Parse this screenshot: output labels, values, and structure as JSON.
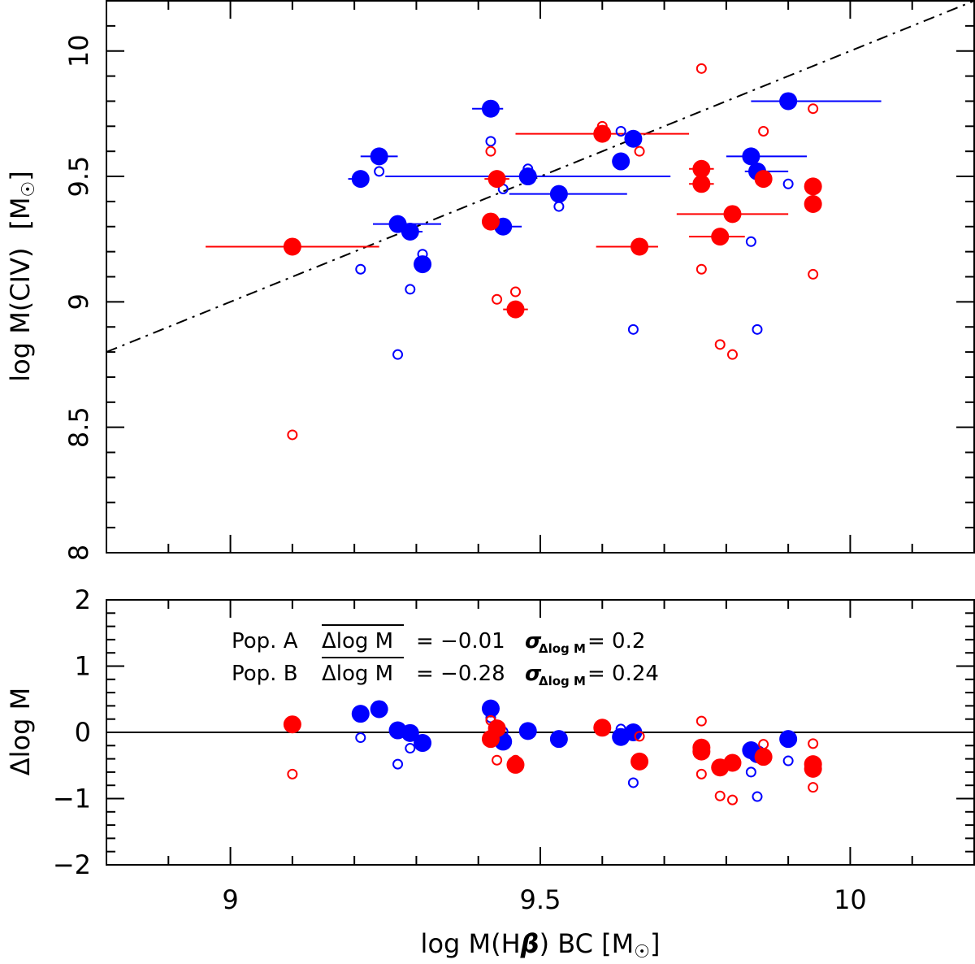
{
  "chart_data": [
    {
      "type": "scatter",
      "panel": "top",
      "ylabel_main": "log M(CIV)",
      "ylabel_unit": "[M",
      "ylabel_unit_close": "]",
      "xlim": [
        8.8,
        10.2
      ],
      "ylim": [
        8.0,
        10.2
      ],
      "xticks": [
        9,
        9.5,
        10
      ],
      "xtick_labels": [
        "",
        "",
        ""
      ],
      "yticks": [
        8,
        8.5,
        9,
        9.5,
        10
      ],
      "ytick_labels": [
        "8",
        "8.5",
        "9",
        "9.5",
        "10"
      ],
      "reference_line": {
        "style": "dash-dot",
        "x": [
          8.8,
          10.2
        ],
        "y": [
          8.8,
          10.2
        ]
      },
      "series": [
        {
          "color": "#0000ff",
          "marker": "filled-circle",
          "points": [
            {
              "x": 9.21,
              "y": 9.49,
              "xerr": [
                0.02,
                0.01
              ]
            },
            {
              "x": 9.24,
              "y": 9.58,
              "xerr": [
                0.03,
                0.03
              ]
            },
            {
              "x": 9.27,
              "y": 9.31,
              "xerr": [
                0.04,
                0.07
              ]
            },
            {
              "x": 9.29,
              "y": 9.28,
              "xerr": [
                0.02,
                0.02
              ]
            },
            {
              "x": 9.31,
              "y": 9.15,
              "xerr": [
                0.0,
                0.0
              ]
            },
            {
              "x": 9.42,
              "y": 9.77,
              "xerr": [
                0.03,
                0.02
              ]
            },
            {
              "x": 9.44,
              "y": 9.3,
              "xerr": [
                0.02,
                0.03
              ]
            },
            {
              "x": 9.48,
              "y": 9.5,
              "xerr": [
                0.23,
                0.23
              ]
            },
            {
              "x": 9.53,
              "y": 9.43,
              "xerr": [
                0.08,
                0.11
              ]
            },
            {
              "x": 9.63,
              "y": 9.56,
              "xerr": [
                0.01,
                0.01
              ]
            },
            {
              "x": 9.65,
              "y": 9.65,
              "xerr": [
                0.0,
                0.0
              ]
            },
            {
              "x": 9.84,
              "y": 9.58,
              "xerr": [
                0.04,
                0.09
              ]
            },
            {
              "x": 9.85,
              "y": 9.52,
              "xerr": [
                0.02,
                0.05
              ]
            },
            {
              "x": 9.9,
              "y": 9.8,
              "xerr": [
                0.06,
                0.15
              ]
            }
          ]
        },
        {
          "color": "#0000ff",
          "marker": "open-circle",
          "points": [
            {
              "x": 9.21,
              "y": 9.13
            },
            {
              "x": 9.24,
              "y": 9.52
            },
            {
              "x": 9.27,
              "y": 8.79
            },
            {
              "x": 9.29,
              "y": 9.05
            },
            {
              "x": 9.31,
              "y": 9.19
            },
            {
              "x": 9.42,
              "y": 9.64
            },
            {
              "x": 9.44,
              "y": 9.45
            },
            {
              "x": 9.48,
              "y": 9.53
            },
            {
              "x": 9.53,
              "y": 9.38
            },
            {
              "x": 9.63,
              "y": 9.68
            },
            {
              "x": 9.65,
              "y": 8.89
            },
            {
              "x": 9.84,
              "y": 9.24
            },
            {
              "x": 9.85,
              "y": 8.89
            },
            {
              "x": 9.9,
              "y": 9.47
            }
          ]
        },
        {
          "color": "#ff0000",
          "marker": "filled-circle",
          "points": [
            {
              "x": 9.1,
              "y": 9.22,
              "xerr": [
                0.14,
                0.14
              ]
            },
            {
              "x": 9.42,
              "y": 9.32,
              "xerr": [
                0.01,
                0.01
              ]
            },
            {
              "x": 9.43,
              "y": 9.49,
              "xerr": [
                0.02,
                0.02
              ]
            },
            {
              "x": 9.46,
              "y": 8.97,
              "xerr": [
                0.02,
                0.02
              ]
            },
            {
              "x": 9.6,
              "y": 9.67,
              "xerr": [
                0.14,
                0.14
              ]
            },
            {
              "x": 9.66,
              "y": 9.22,
              "xerr": [
                0.07,
                0.03
              ]
            },
            {
              "x": 9.76,
              "y": 9.53,
              "xerr": [
                0.02,
                0.02
              ]
            },
            {
              "x": 9.76,
              "y": 9.47,
              "xerr": [
                0.02,
                0.02
              ]
            },
            {
              "x": 9.79,
              "y": 9.26,
              "xerr": [
                0.05,
                0.04
              ]
            },
            {
              "x": 9.81,
              "y": 9.35,
              "xerr": [
                0.09,
                0.09
              ]
            },
            {
              "x": 9.86,
              "y": 9.49,
              "xerr": [
                0.0,
                0.0
              ]
            },
            {
              "x": 9.94,
              "y": 9.46,
              "xerr": [
                0.01,
                0.01
              ]
            },
            {
              "x": 9.94,
              "y": 9.39,
              "xerr": [
                0.01,
                0.01
              ]
            }
          ]
        },
        {
          "color": "#ff0000",
          "marker": "open-circle",
          "points": [
            {
              "x": 9.1,
              "y": 8.47
            },
            {
              "x": 9.42,
              "y": 9.6
            },
            {
              "x": 9.43,
              "y": 9.01
            },
            {
              "x": 9.46,
              "y": 9.04
            },
            {
              "x": 9.6,
              "y": 9.7
            },
            {
              "x": 9.66,
              "y": 9.6
            },
            {
              "x": 9.76,
              "y": 9.93
            },
            {
              "x": 9.76,
              "y": 9.13
            },
            {
              "x": 9.79,
              "y": 8.83
            },
            {
              "x": 9.81,
              "y": 8.79
            },
            {
              "x": 9.86,
              "y": 9.68
            },
            {
              "x": 9.94,
              "y": 9.77
            },
            {
              "x": 9.94,
              "y": 9.11
            }
          ]
        }
      ]
    },
    {
      "type": "scatter",
      "panel": "bottom",
      "xlabel_main": "log M(H",
      "xlabel_beta": "β",
      "xlabel_rest": ") BC  [M",
      "xlabel_close": "]",
      "ylabel_main": "Δlog M",
      "xlim": [
        8.8,
        10.2
      ],
      "ylim": [
        -2,
        2
      ],
      "xticks": [
        9,
        9.5,
        10
      ],
      "xtick_labels": [
        "9",
        "9.5",
        "10"
      ],
      "yticks": [
        -2,
        -1,
        0,
        1,
        2
      ],
      "ytick_labels": [
        "−2",
        "−1",
        "0",
        "1",
        "2"
      ],
      "reference_line": {
        "style": "solid",
        "y": 0
      },
      "annotations": [
        {
          "pop": "Pop. A",
          "mean_label": "Δlog M",
          "mean_value": "=  −0.01",
          "sigma_symbol": "σ",
          "sigma_sub": "Δlog M",
          "sigma_value": "=  0.2"
        },
        {
          "pop": "Pop. B",
          "mean_label": "Δlog M",
          "mean_value": "=  −0.28",
          "sigma_symbol": "σ",
          "sigma_sub": "Δlog M",
          "sigma_value": "=  0.24"
        }
      ],
      "series": [
        {
          "color": "#0000ff",
          "marker": "filled-circle",
          "points": [
            {
              "x": 9.21,
              "y": 0.28
            },
            {
              "x": 9.24,
              "y": 0.35
            },
            {
              "x": 9.27,
              "y": 0.03
            },
            {
              "x": 9.29,
              "y": -0.01
            },
            {
              "x": 9.31,
              "y": -0.16
            },
            {
              "x": 9.42,
              "y": 0.36
            },
            {
              "x": 9.44,
              "y": -0.14
            },
            {
              "x": 9.48,
              "y": 0.02
            },
            {
              "x": 9.53,
              "y": -0.1
            },
            {
              "x": 9.63,
              "y": -0.07
            },
            {
              "x": 9.65,
              "y": 0.0
            },
            {
              "x": 9.84,
              "y": -0.27
            },
            {
              "x": 9.85,
              "y": -0.33
            },
            {
              "x": 9.9,
              "y": -0.1
            }
          ]
        },
        {
          "color": "#0000ff",
          "marker": "open-circle",
          "points": [
            {
              "x": 9.21,
              "y": -0.08
            },
            {
              "x": 9.27,
              "y": -0.48
            },
            {
              "x": 9.29,
              "y": -0.24
            },
            {
              "x": 9.31,
              "y": -0.12
            },
            {
              "x": 9.42,
              "y": 0.22
            },
            {
              "x": 9.44,
              "y": 0.01
            },
            {
              "x": 9.63,
              "y": 0.05
            },
            {
              "x": 9.65,
              "y": -0.76
            },
            {
              "x": 9.84,
              "y": -0.6
            },
            {
              "x": 9.85,
              "y": -0.97
            },
            {
              "x": 9.9,
              "y": -0.43
            }
          ]
        },
        {
          "color": "#ff0000",
          "marker": "filled-circle",
          "points": [
            {
              "x": 9.1,
              "y": 0.12
            },
            {
              "x": 9.42,
              "y": -0.1
            },
            {
              "x": 9.43,
              "y": 0.06
            },
            {
              "x": 9.46,
              "y": -0.49
            },
            {
              "x": 9.6,
              "y": 0.07
            },
            {
              "x": 9.66,
              "y": -0.44
            },
            {
              "x": 9.76,
              "y": -0.23
            },
            {
              "x": 9.76,
              "y": -0.29
            },
            {
              "x": 9.79,
              "y": -0.53
            },
            {
              "x": 9.81,
              "y": -0.46
            },
            {
              "x": 9.86,
              "y": -0.37
            },
            {
              "x": 9.94,
              "y": -0.48
            },
            {
              "x": 9.94,
              "y": -0.55
            }
          ]
        },
        {
          "color": "#ff0000",
          "marker": "open-circle",
          "points": [
            {
              "x": 9.1,
              "y": -0.63
            },
            {
              "x": 9.42,
              "y": 0.18
            },
            {
              "x": 9.43,
              "y": -0.42
            },
            {
              "x": 9.46,
              "y": -0.42
            },
            {
              "x": 9.6,
              "y": 0.1
            },
            {
              "x": 9.66,
              "y": -0.06
            },
            {
              "x": 9.76,
              "y": 0.17
            },
            {
              "x": 9.76,
              "y": -0.63
            },
            {
              "x": 9.79,
              "y": -0.96
            },
            {
              "x": 9.81,
              "y": -1.02
            },
            {
              "x": 9.86,
              "y": -0.18
            },
            {
              "x": 9.94,
              "y": -0.17
            },
            {
              "x": 9.94,
              "y": -0.83
            }
          ]
        }
      ]
    }
  ]
}
